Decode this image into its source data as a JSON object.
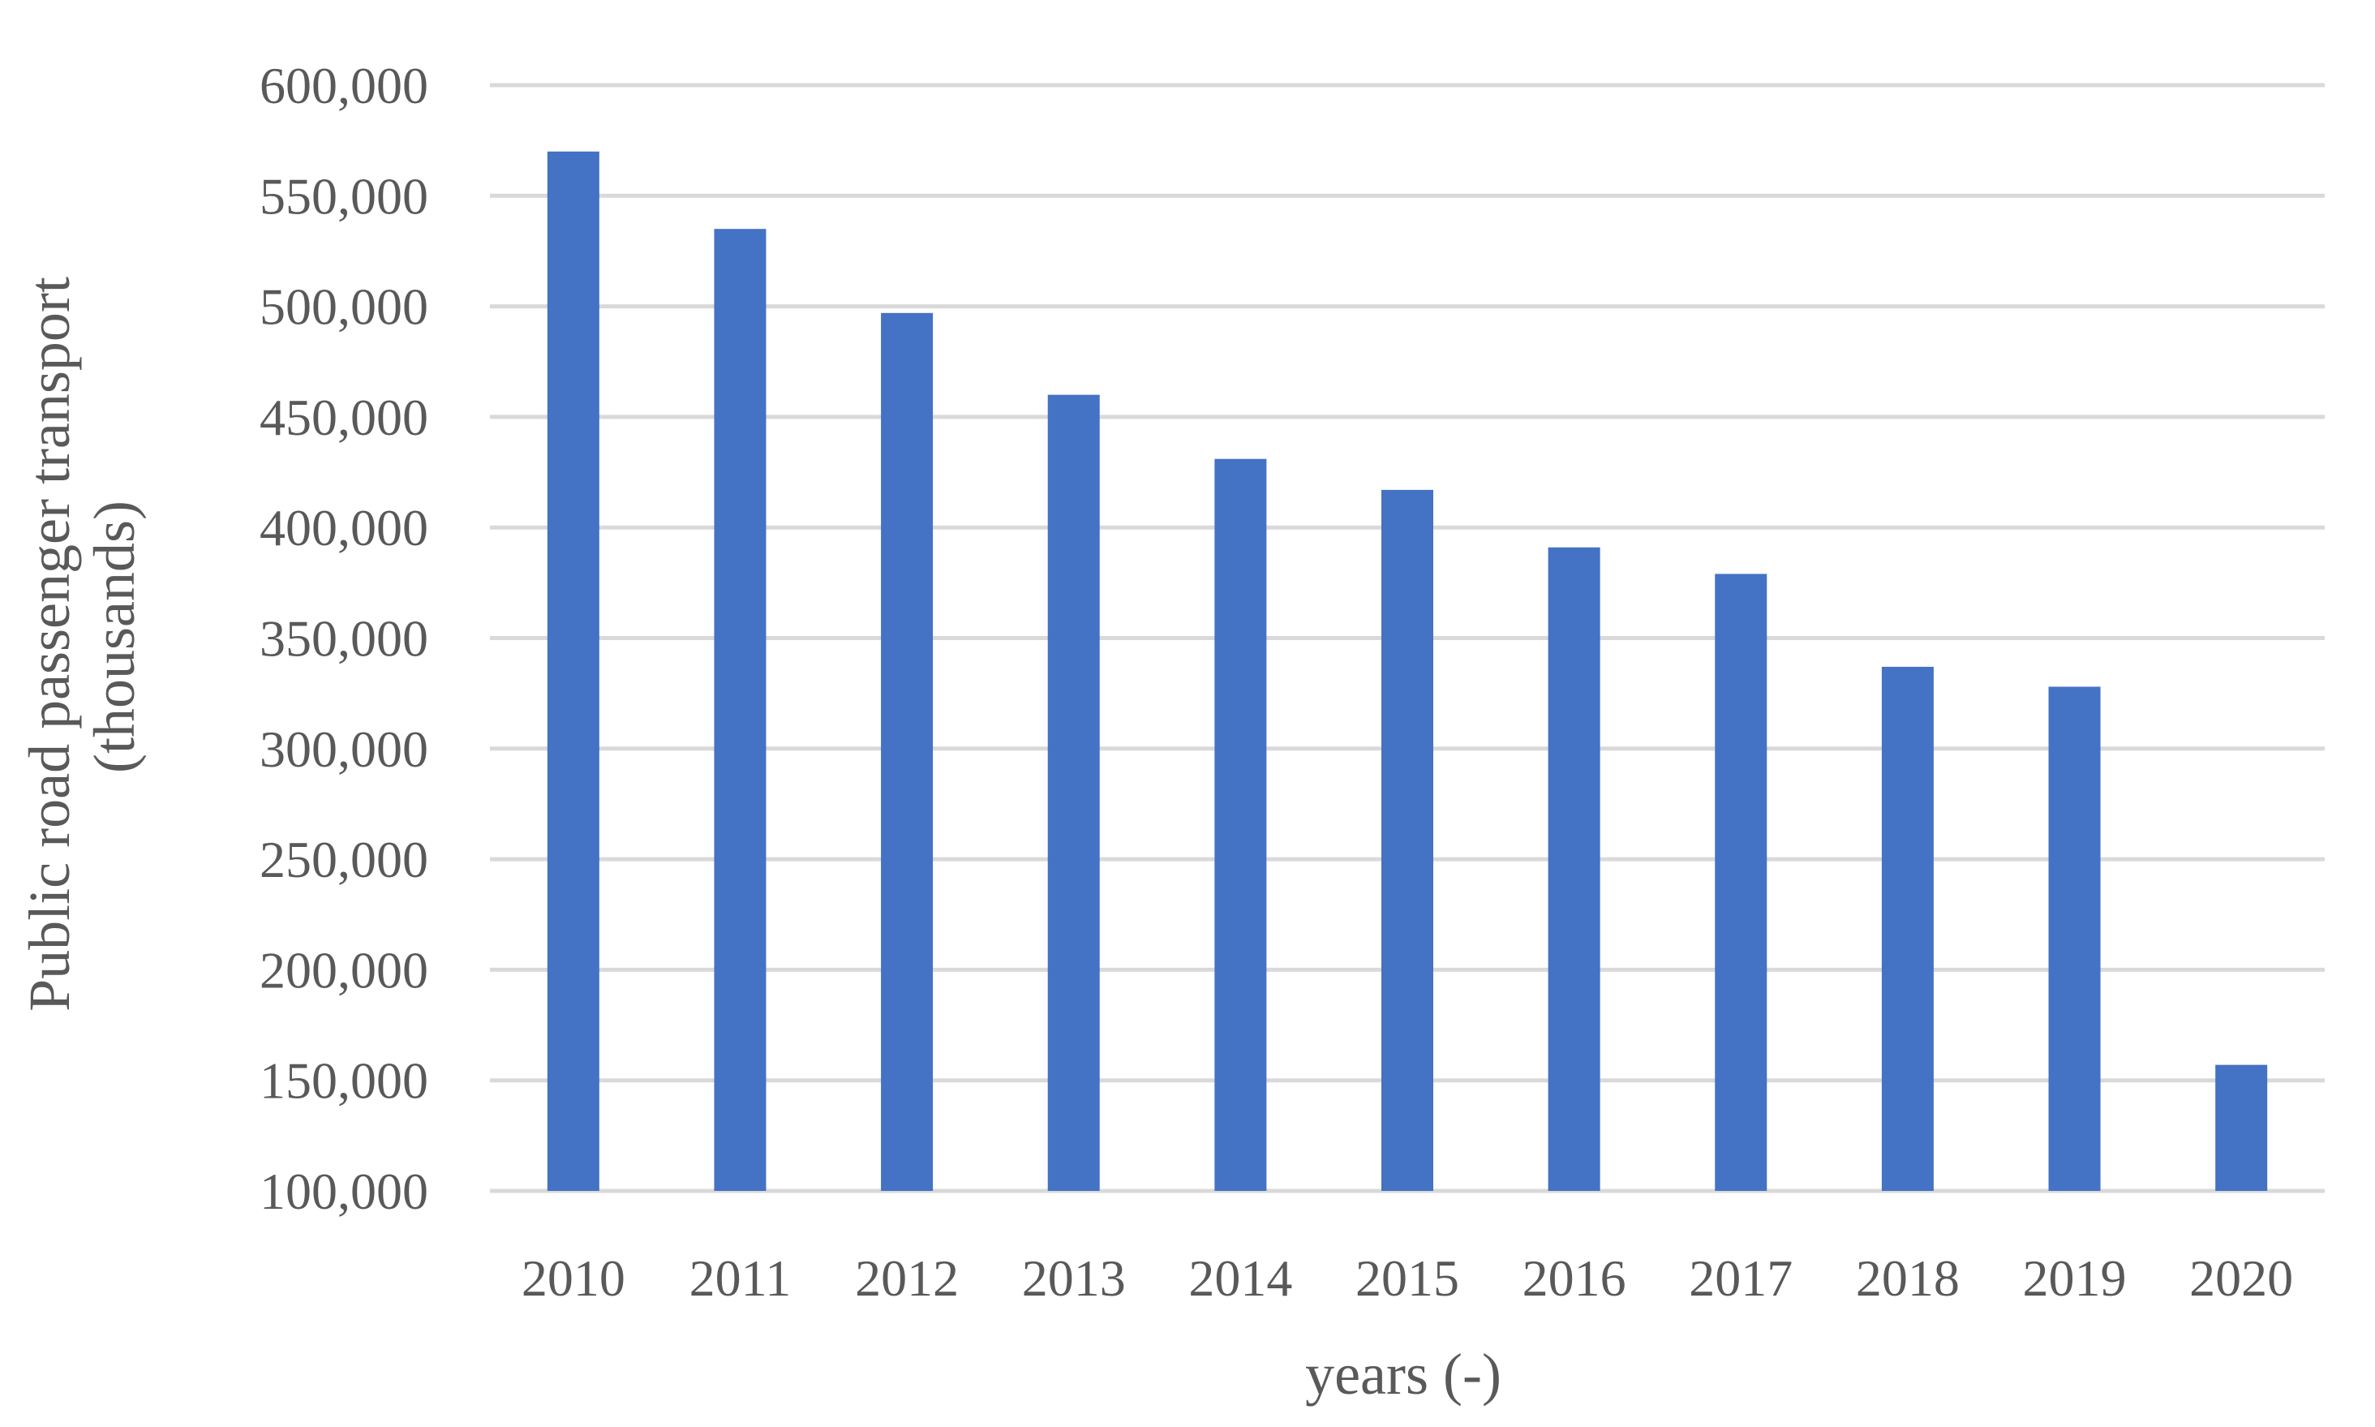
{
  "chart_data": {
    "type": "bar",
    "categories": [
      "2010",
      "2011",
      "2012",
      "2013",
      "2014",
      "2015",
      "2016",
      "2017",
      "2018",
      "2019",
      "2020"
    ],
    "series": [
      {
        "values": [
          570000,
          535000,
          497000,
          460000,
          431000,
          417000,
          391000,
          379000,
          337000,
          328000,
          157000
        ]
      }
    ],
    "yticks": [
      100000,
      150000,
      200000,
      250000,
      300000,
      350000,
      400000,
      450000,
      500000,
      550000,
      600000
    ],
    "ytick_labels": [
      "100,000",
      "150,000",
      "200,000",
      "250,000",
      "300,000",
      "350,000",
      "400,000",
      "450,000",
      "500,000",
      "550,000",
      "600,000"
    ],
    "ylim": [
      100000,
      600000
    ],
    "xlabel": "years (-)",
    "ylabel_lines": [
      "Public road passenger transport",
      "(thousands)"
    ],
    "grid": true,
    "legend": "none",
    "colors": {
      "bar": "#4472C4",
      "grid": "#D9D9D9",
      "text": "#595959"
    }
  }
}
